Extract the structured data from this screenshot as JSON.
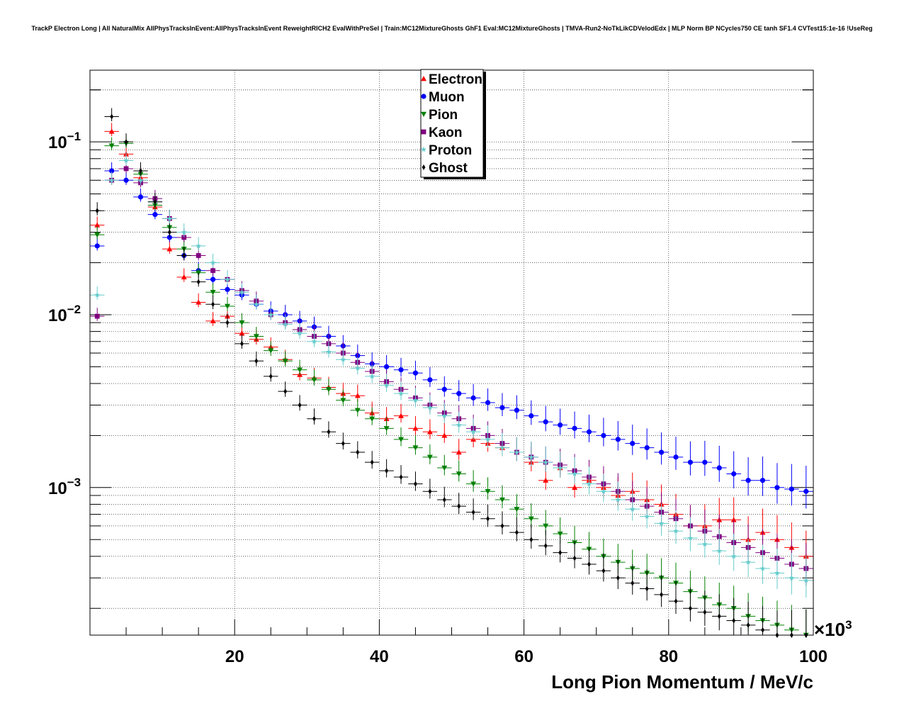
{
  "chart_data": {
    "type": "scatter",
    "title": "TrackP Electron Long | All NaturalMix AllPhysTracksInEvent:AllPhysTracksInEvent ReweightRICH2 EvalWithPreSel | Train:MC12MixtureGhosts GhF1 Eval:MC12MixtureGhosts | TMVA-Run2-NoTkLikCDVelodEdx | MLP Norm BP NCycles750 CE tanh SF1.4 CVTest15:1e-16 !UseReg",
    "xlabel": "Long Pion Momentum / MeV/c",
    "ylabel": "",
    "x_multiplier": "×10",
    "x_multiplier_exp": "3",
    "xlim": [
      0,
      100
    ],
    "ylim": [
      0.00014,
      0.26
    ],
    "y_scale": "log",
    "grid": true,
    "legend_position": "top-center",
    "xticks": [
      {
        "value": 20,
        "label": "20"
      },
      {
        "value": 40,
        "label": "40"
      },
      {
        "value": 60,
        "label": "60"
      },
      {
        "value": 80,
        "label": "80"
      },
      {
        "value": 100,
        "label": "100"
      }
    ],
    "yticks": [
      {
        "value": 0.1,
        "base": "10",
        "exp": "−1"
      },
      {
        "value": 0.01,
        "base": "10",
        "exp": "−2"
      },
      {
        "value": 0.001,
        "base": "10",
        "exp": "−3"
      }
    ],
    "x": [
      1,
      3,
      5,
      7,
      9,
      11,
      13,
      15,
      17,
      19,
      21,
      23,
      25,
      27,
      29,
      31,
      33,
      35,
      37,
      39,
      41,
      43,
      45,
      47,
      49,
      51,
      53,
      55,
      57,
      59,
      61,
      63,
      65,
      67,
      69,
      71,
      73,
      75,
      77,
      79,
      81,
      83,
      85,
      87,
      89,
      91,
      93,
      95,
      97,
      99
    ],
    "series": [
      {
        "name": "Electron",
        "color": "#ff0000",
        "marker": "triangle-up",
        "values": [
          0.033,
          0.115,
          0.085,
          0.062,
          0.042,
          0.024,
          0.0165,
          0.0118,
          0.0092,
          0.0098,
          0.0078,
          0.0072,
          0.0065,
          0.0055,
          0.0045,
          0.0043,
          0.0038,
          0.0035,
          0.0034,
          0.0027,
          0.0025,
          0.0026,
          0.0022,
          0.0021,
          0.002,
          0.0016,
          0.0019,
          0.0018,
          0.0017,
          0.0016,
          0.0014,
          0.0011,
          0.0013,
          0.001,
          0.0011,
          0.001,
          0.0009,
          0.00095,
          0.00085,
          0.0008,
          0.0007,
          0.0006,
          0.0006,
          0.00065,
          0.00065,
          0.0005,
          0.00055,
          0.0005,
          0.00045,
          0.0004
        ]
      },
      {
        "name": "Muon",
        "color": "#0000ff",
        "marker": "circle",
        "values": [
          0.025,
          0.068,
          0.06,
          0.048,
          0.038,
          0.028,
          0.022,
          0.018,
          0.016,
          0.014,
          0.013,
          0.0115,
          0.0105,
          0.01,
          0.0092,
          0.0085,
          0.0075,
          0.0066,
          0.0058,
          0.0052,
          0.005,
          0.0048,
          0.0046,
          0.0042,
          0.0037,
          0.0035,
          0.0033,
          0.0031,
          0.0029,
          0.0028,
          0.0026,
          0.0024,
          0.0023,
          0.0022,
          0.0021,
          0.002,
          0.0019,
          0.0018,
          0.0017,
          0.0016,
          0.0015,
          0.0014,
          0.0014,
          0.0013,
          0.0012,
          0.0011,
          0.0011,
          0.001,
          0.00098,
          0.00095
        ]
      },
      {
        "name": "Pion",
        "color": "#008000",
        "marker": "triangle-down",
        "values": [
          0.029,
          0.095,
          0.098,
          0.065,
          0.043,
          0.032,
          0.024,
          0.0175,
          0.0135,
          0.0112,
          0.009,
          0.0075,
          0.0062,
          0.0054,
          0.0048,
          0.0042,
          0.0037,
          0.0032,
          0.0028,
          0.0025,
          0.0022,
          0.0019,
          0.0017,
          0.0015,
          0.0013,
          0.0012,
          0.00105,
          0.00095,
          0.00085,
          0.00075,
          0.00066,
          0.0006,
          0.00054,
          0.00048,
          0.00044,
          0.0004,
          0.00037,
          0.00034,
          0.00032,
          0.0003,
          0.00028,
          0.00025,
          0.00023,
          0.00021,
          0.0002,
          0.00018,
          0.00017,
          0.00016,
          0.00015,
          0.00014
        ]
      },
      {
        "name": "Kaon",
        "color": "#800080",
        "marker": "square",
        "values": [
          0.0098,
          0.06,
          0.07,
          0.058,
          0.047,
          0.036,
          0.028,
          0.022,
          0.018,
          0.016,
          0.0138,
          0.012,
          0.01,
          0.009,
          0.0082,
          0.0075,
          0.0068,
          0.006,
          0.0053,
          0.0047,
          0.0041,
          0.0037,
          0.0033,
          0.003,
          0.0027,
          0.0025,
          0.0022,
          0.002,
          0.0018,
          0.0016,
          0.0015,
          0.0014,
          0.00135,
          0.00125,
          0.00115,
          0.00105,
          0.00095,
          0.00085,
          0.00078,
          0.00072,
          0.00066,
          0.0006,
          0.00056,
          0.00052,
          0.00048,
          0.00045,
          0.00042,
          0.00039,
          0.00036,
          0.00034
        ]
      },
      {
        "name": "Proton",
        "color": "#66cccc",
        "marker": "star",
        "values": [
          0.013,
          0.06,
          0.078,
          0.06,
          0.045,
          0.036,
          0.03,
          0.025,
          0.02,
          0.016,
          0.0135,
          0.0115,
          0.01,
          0.0088,
          0.0078,
          0.007,
          0.0061,
          0.0055,
          0.0049,
          0.0044,
          0.0039,
          0.0035,
          0.0032,
          0.0029,
          0.0026,
          0.0023,
          0.0021,
          0.0019,
          0.0017,
          0.0016,
          0.0015,
          0.0014,
          0.0013,
          0.0012,
          0.00105,
          0.00095,
          0.00085,
          0.00075,
          0.00068,
          0.00062,
          0.00056,
          0.00051,
          0.00047,
          0.00043,
          0.0004,
          0.00037,
          0.00034,
          0.00032,
          0.0003,
          0.00029
        ]
      },
      {
        "name": "Ghost",
        "color": "#000000",
        "marker": "cross",
        "values": [
          0.04,
          0.14,
          0.1,
          0.068,
          0.045,
          0.03,
          0.022,
          0.0155,
          0.0115,
          0.009,
          0.0068,
          0.0054,
          0.0044,
          0.0036,
          0.003,
          0.0025,
          0.0021,
          0.0018,
          0.0016,
          0.0014,
          0.00125,
          0.00115,
          0.00105,
          0.00095,
          0.00085,
          0.00078,
          0.00072,
          0.00066,
          0.0006,
          0.00055,
          0.0005,
          0.00046,
          0.00042,
          0.00039,
          0.00036,
          0.00033,
          0.0003,
          0.00028,
          0.00026,
          0.00024,
          0.00022,
          0.0002,
          0.00019,
          0.00018,
          0.00017,
          0.00016,
          0.00015,
          0.00014,
          0.00014,
          0.00014
        ]
      }
    ]
  }
}
